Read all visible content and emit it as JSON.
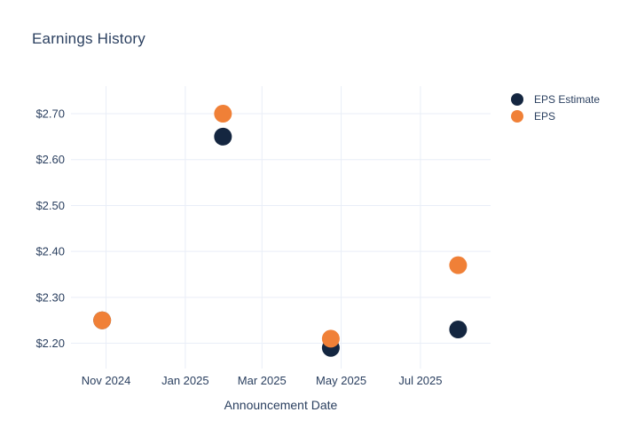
{
  "title": "Earnings History",
  "colors": {
    "text": "#2a3f5f",
    "grid": "#e9eef7",
    "background": "#ffffff",
    "eps_estimate": "#142640",
    "eps": "#f08037"
  },
  "legend": {
    "items": [
      {
        "label": "EPS Estimate",
        "color": "#142640"
      },
      {
        "label": "EPS",
        "color": "#f08037"
      }
    ]
  },
  "chart_data": {
    "type": "scatter",
    "title": "Earnings History",
    "xlabel": "Announcement Date",
    "ylabel": "",
    "grid": true,
    "legend_position": "top-right",
    "x_range": [
      "2024-10-05",
      "2025-08-24"
    ],
    "y_range": [
      2.145,
      2.76
    ],
    "x_ticks": [
      {
        "date": "2024-11-01",
        "label": "Nov 2024"
      },
      {
        "date": "2025-01-01",
        "label": "Jan 2025"
      },
      {
        "date": "2025-03-01",
        "label": "Mar 2025"
      },
      {
        "date": "2025-05-01",
        "label": "May 2025"
      },
      {
        "date": "2025-07-01",
        "label": "Jul 2025"
      }
    ],
    "y_ticks": [
      {
        "value": 2.2,
        "label": "$2.20"
      },
      {
        "value": 2.3,
        "label": "$2.30"
      },
      {
        "value": 2.4,
        "label": "$2.40"
      },
      {
        "value": 2.5,
        "label": "$2.50"
      },
      {
        "value": 2.6,
        "label": "$2.60"
      },
      {
        "value": 2.7,
        "label": "$2.70"
      }
    ],
    "series": [
      {
        "name": "EPS Estimate",
        "color": "#142640",
        "points": [
          {
            "date": "2024-10-29",
            "value": 2.25
          },
          {
            "date": "2025-01-30",
            "value": 2.65
          },
          {
            "date": "2025-04-23",
            "value": 2.19
          },
          {
            "date": "2025-07-30",
            "value": 2.23
          }
        ]
      },
      {
        "name": "EPS",
        "color": "#f08037",
        "points": [
          {
            "date": "2024-10-29",
            "value": 2.25
          },
          {
            "date": "2025-01-30",
            "value": 2.7
          },
          {
            "date": "2025-04-23",
            "value": 2.21
          },
          {
            "date": "2025-07-30",
            "value": 2.37
          }
        ]
      }
    ]
  }
}
